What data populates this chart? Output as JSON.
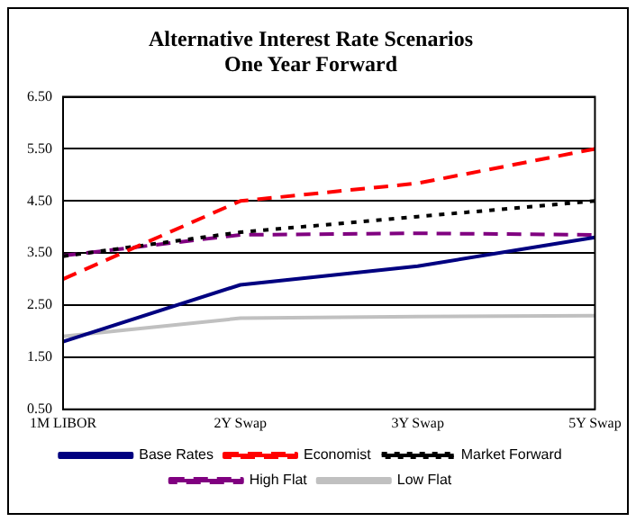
{
  "chart_data": {
    "type": "line",
    "title": "Alternative Interest Rate Scenarios\nOne Year Forward",
    "categories": [
      "1M LIBOR",
      "2Y Swap",
      "3Y Swap",
      "5Y Swap"
    ],
    "series": [
      {
        "name": "Base Rates",
        "color": "#000080",
        "line_style": "solid",
        "values": [
          1.8,
          2.89,
          3.25,
          3.8
        ]
      },
      {
        "name": "Economist",
        "color": "#ff0000",
        "line_style": "dashed",
        "values": [
          3.0,
          4.5,
          4.84,
          5.5
        ]
      },
      {
        "name": "Market Forward",
        "color": "#000000",
        "line_style": "dotted",
        "values": [
          3.44,
          3.9,
          4.2,
          4.5
        ]
      },
      {
        "name": "High Flat",
        "color": "#800080",
        "line_style": "dashed",
        "values": [
          3.45,
          3.85,
          3.88,
          3.85
        ]
      },
      {
        "name": "Low Flat",
        "color": "#c0c0c0",
        "line_style": "solid",
        "values": [
          1.9,
          2.25,
          2.28,
          2.3
        ]
      }
    ],
    "ylim": [
      0.5,
      6.5
    ],
    "yticks": [
      {
        "value": 0.5,
        "label": "0.50"
      },
      {
        "value": 1.5,
        "label": "1.50"
      },
      {
        "value": 2.5,
        "label": "2.50"
      },
      {
        "value": 3.5,
        "label": "3.50"
      },
      {
        "value": 4.5,
        "label": "4.50"
      },
      {
        "value": 5.5,
        "label": "5.50"
      },
      {
        "value": 6.5,
        "label": "6.50"
      }
    ],
    "grid": "y",
    "legend": "bottom",
    "marker": "none"
  }
}
